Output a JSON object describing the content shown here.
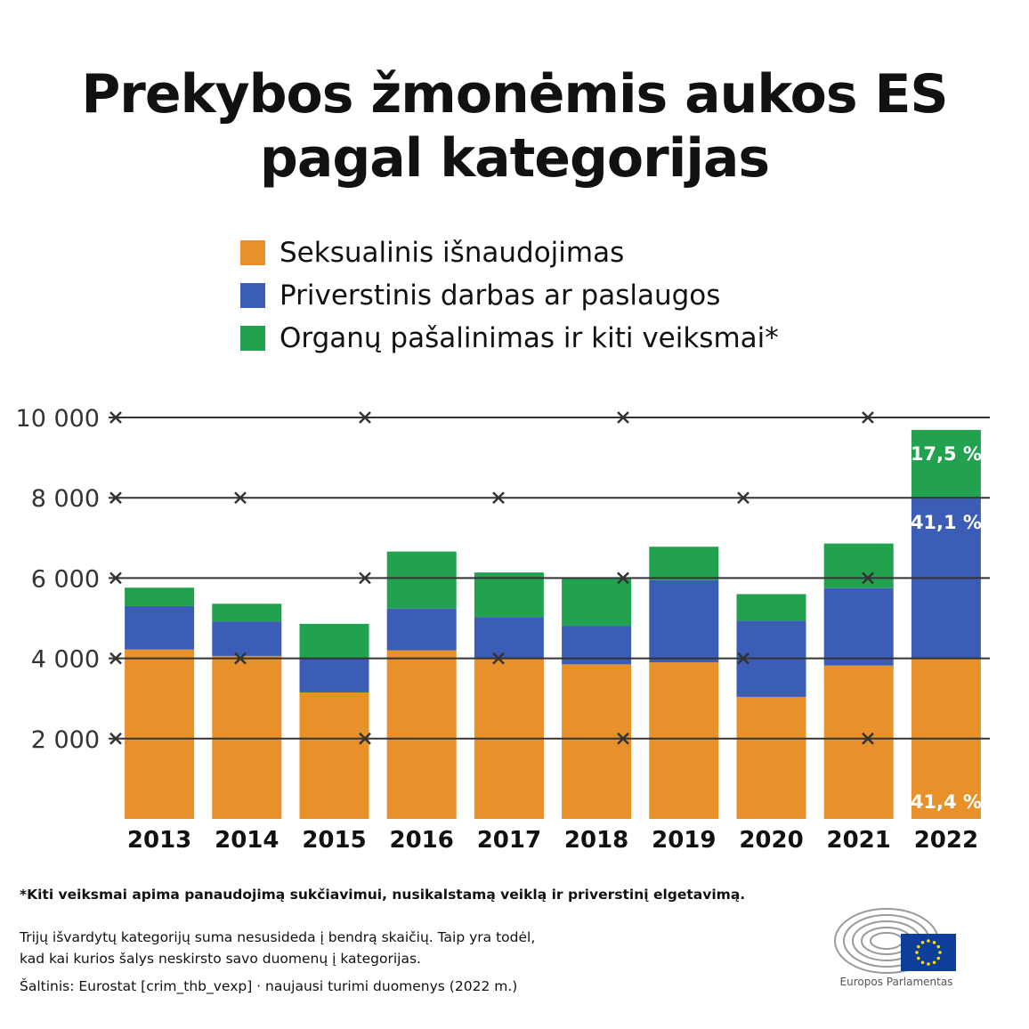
{
  "title_line1": "Prekybos žmonėmis aukos ES",
  "title_line2": "pagal kategorijas",
  "legend": [
    {
      "label": "Seksualinis išnaudojimas",
      "color": "#e8902a"
    },
    {
      "label": "Priverstinis darbas ar paslaugos",
      "color": "#3c5db5"
    },
    {
      "label": "Organų pašalinimas ir kiti veiksmai*",
      "color": "#22a24f"
    }
  ],
  "chart_data": {
    "type": "bar",
    "stacked": true,
    "categories": [
      "2013",
      "2014",
      "2015",
      "2016",
      "2017",
      "2018",
      "2019",
      "2020",
      "2021",
      "2022"
    ],
    "series": [
      {
        "name": "Seksualinis išnaudojimas",
        "color": "#e8902a",
        "values": [
          4220,
          4060,
          3150,
          4200,
          4000,
          3850,
          3900,
          3040,
          3820,
          4000
        ]
      },
      {
        "name": "Priverstinis darbas ar paslaugos",
        "color": "#3c5db5",
        "values": [
          1080,
          860,
          850,
          1040,
          1030,
          960,
          2050,
          1900,
          1930,
          3980
        ]
      },
      {
        "name": "Organų pašalinimas ir kiti veiksmai*",
        "color": "#22a24f",
        "values": [
          460,
          440,
          860,
          1420,
          1110,
          1200,
          830,
          660,
          1110,
          1710
        ]
      }
    ],
    "ylim": [
      0,
      10000
    ],
    "yticks": [
      2000,
      4000,
      6000,
      8000,
      10000
    ],
    "ytick_labels": [
      "2 000",
      "4 000",
      "6 000",
      "8 000",
      "10 000"
    ],
    "gridlines": true,
    "data_labels": [
      {
        "category": "2022",
        "series": 0,
        "text": "41,4 %"
      },
      {
        "category": "2022",
        "series": 1,
        "text": "41,1 %"
      },
      {
        "category": "2022",
        "series": 2,
        "text": "17,5 %"
      }
    ],
    "legend_position": "top"
  },
  "footnote": "*Kiti veiksmai apima panaudojimą sukčiavimui, nusikalstamą veiklą ir priverstinį elgetavimą.",
  "note_line1": "Trijų išvardytų kategorijų suma nesusideda į bendrą skaičių. Taip yra todėl,",
  "note_line2": "kad kai kurios šalys neskirsto savo duomenų į kategorijas.",
  "source": "Šaltinis: Eurostat [crim_thb_vexp] · naujausi turimi duomenys (2022 m.)",
  "logo_text": "Europos Parlamentas",
  "colors": {
    "flag": "#0d3e9a",
    "stars": "#ffdd00",
    "grid": "#333333"
  }
}
